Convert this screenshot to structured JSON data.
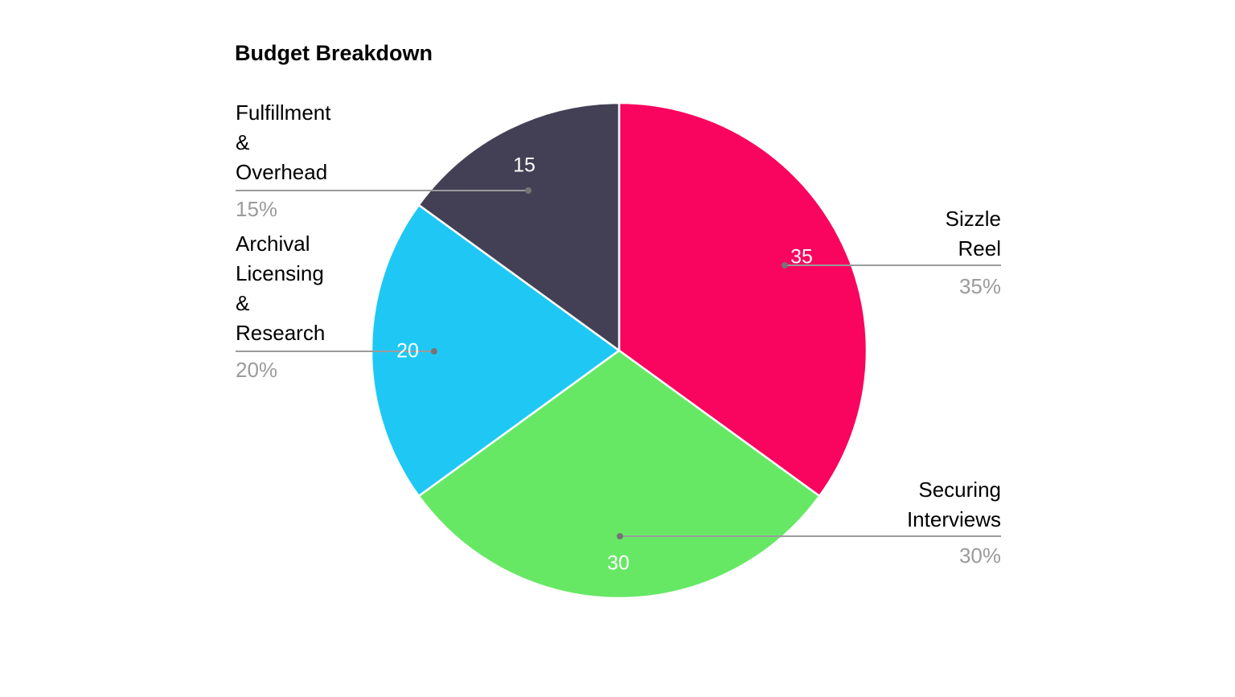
{
  "chart_data": {
    "type": "pie",
    "title": "Budget Breakdown",
    "direction": "clockwise",
    "start_angle": "12-oclock",
    "total": 100,
    "slices": [
      {
        "name": "Sizzle Reel",
        "label_lines": [
          "Sizzle",
          "Reel"
        ],
        "value": 35,
        "percent_label": "35%",
        "color": "#f9045e",
        "label_side": "right"
      },
      {
        "name": "Securing Interviews",
        "label_lines": [
          "Securing",
          "Interviews"
        ],
        "value": 30,
        "percent_label": "30%",
        "color": "#66e865",
        "label_side": "right"
      },
      {
        "name": "Archival Licensing & Research",
        "label_lines": [
          "Archival",
          "Licensing",
          "&",
          "Research"
        ],
        "value": 20,
        "percent_label": "20%",
        "color": "#1fc8f4",
        "label_side": "left"
      },
      {
        "name": "Fulfillment & Overhead",
        "label_lines": [
          "Fulfillment",
          "&",
          "Overhead"
        ],
        "value": 15,
        "percent_label": "15%",
        "color": "#434055",
        "label_side": "left"
      }
    ],
    "colors": {
      "background": "#ffffff",
      "title_text": "#000000",
      "label_text": "#000000",
      "percent_text": "#9b9b9b",
      "leader_line": "#9b9b9b",
      "leader_dot": "#757575",
      "value_text": "#ffffff",
      "slice_border": "#ffffff"
    },
    "legend": "none",
    "grid": false
  }
}
